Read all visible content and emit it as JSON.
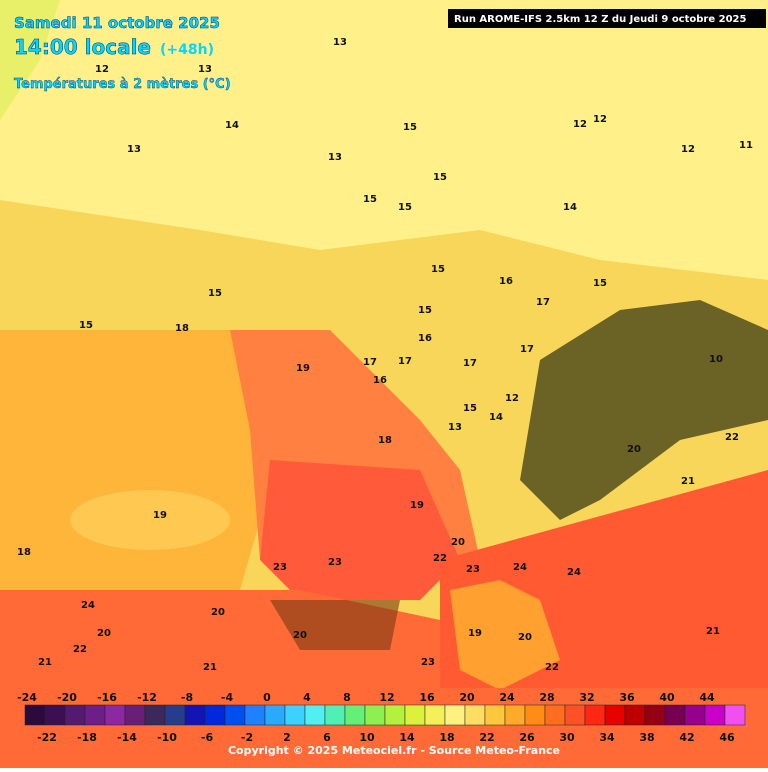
{
  "header": {
    "date": "Samedi 11 octobre 2025",
    "time": "14:00 locale",
    "lead": "(+48h)",
    "variable": "Températures à 2 mètres (°C)",
    "run": "Run AROME-IFS 2.5km 12 Z du Jeudi 9 octobre 2025"
  },
  "colorbar": {
    "ticks": [
      -24,
      -22,
      -20,
      -18,
      -16,
      -14,
      -12,
      -10,
      -8,
      -6,
      -4,
      -2,
      0,
      2,
      4,
      6,
      8,
      10,
      12,
      14,
      16,
      18,
      20,
      22,
      24,
      26,
      28,
      30,
      32,
      34,
      36,
      38,
      40,
      42,
      44,
      46
    ],
    "colors": [
      "#2d0a3c",
      "#3c0f52",
      "#551a6e",
      "#6e1e87",
      "#8c28a0",
      "#6a1e78",
      "#3c285a",
      "#283c8c",
      "#1414b4",
      "#0028dc",
      "#0050f0",
      "#1e82ff",
      "#28aaff",
      "#3cd2ff",
      "#50f0f0",
      "#50f0b4",
      "#64f078",
      "#8cf050",
      "#b4f03c",
      "#dcf03c",
      "#f5f05a",
      "#fff082",
      "#ffdc64",
      "#ffc83c",
      "#ffaa28",
      "#ff8c14",
      "#ff6e1e",
      "#ff5028",
      "#ff2814",
      "#e60000",
      "#be0000",
      "#960014",
      "#780050",
      "#96008c",
      "#c800c8",
      "#f050f0"
    ]
  },
  "map": {
    "contour_labels": [
      13,
      12,
      13,
      14,
      13,
      13,
      15,
      15,
      15,
      15,
      15,
      16,
      12,
      12,
      12,
      11,
      15,
      15,
      14,
      18,
      15,
      19,
      17,
      17,
      16,
      17,
      17,
      15,
      18,
      16,
      17,
      14,
      12,
      13,
      15,
      19,
      19,
      18,
      23,
      23,
      22,
      20,
      24,
      24,
      23,
      24,
      22,
      21,
      20,
      19,
      20,
      22,
      20,
      21,
      20,
      23,
      20,
      21,
      10,
      21,
      22
    ]
  },
  "footer": {
    "copyright": "Copyright © 2025 Meteociel.fr - Source Meteo-France"
  }
}
